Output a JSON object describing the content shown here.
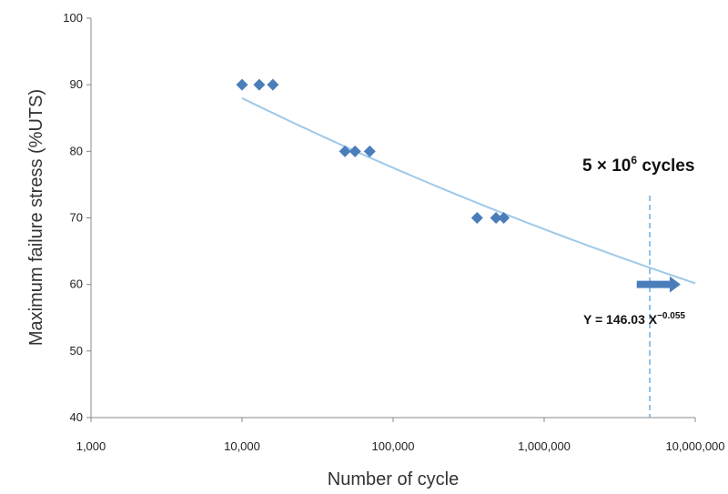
{
  "chart_data": {
    "type": "scatter",
    "xlabel": "Number of cycle",
    "ylabel": "Maximum failure stress (%UTS)",
    "xscale": "log",
    "xlim": [
      1000,
      10000000
    ],
    "ylim": [
      40,
      100
    ],
    "x_ticks": [
      1000,
      10000,
      100000,
      1000000,
      10000000
    ],
    "x_tick_labels": [
      "1,000",
      "10,000",
      "100,000",
      "1,000,000",
      "10,000,000"
    ],
    "y_ticks": [
      40,
      50,
      60,
      70,
      80,
      90,
      100
    ],
    "y_tick_labels": [
      "40",
      "50",
      "60",
      "70",
      "80",
      "90",
      "100"
    ],
    "grid": false,
    "series": [
      {
        "marker": "diamond",
        "color": "#4a7ebb",
        "points": [
          {
            "x": 10000,
            "y": 90
          },
          {
            "x": 13000,
            "y": 90
          },
          {
            "x": 16000,
            "y": 90
          },
          {
            "x": 48000,
            "y": 80
          },
          {
            "x": 56000,
            "y": 80
          },
          {
            "x": 70000,
            "y": 80
          },
          {
            "x": 360000,
            "y": 70
          },
          {
            "x": 480000,
            "y": 70
          },
          {
            "x": 540000,
            "y": 70
          }
        ]
      }
    ],
    "trendline": {
      "coefficient": 146.03,
      "exponent": -0.055,
      "x_range": [
        10000,
        10000000
      ],
      "color": "#9ec9e8"
    },
    "reference_line": {
      "x": 5000000,
      "style": "dashed",
      "color": "#6aaee0"
    },
    "arrow": {
      "x_start": 4100000,
      "x_end": 8000000,
      "y": 60,
      "color": "#4a7ebb"
    },
    "annotations": {
      "cycles": {
        "base": "5 × 10",
        "sup": "6",
        "tail": " cycles"
      },
      "equation": {
        "base": "Y = 146.03 X",
        "sup": "−0.055"
      }
    }
  }
}
